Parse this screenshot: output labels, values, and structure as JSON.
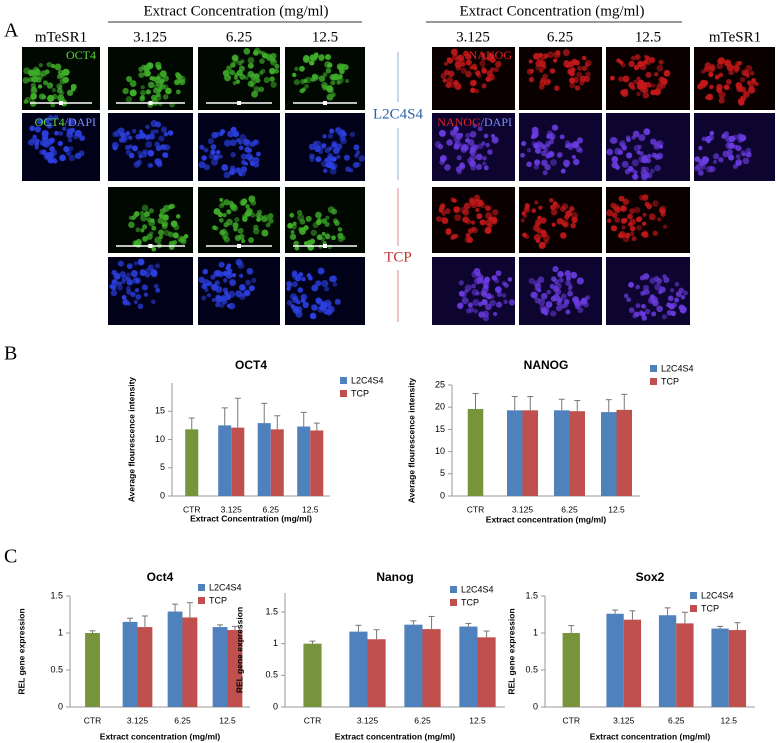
{
  "panel_a": {
    "label": "A",
    "left_header": "Extract  Concentration (mg/ml)",
    "right_header": "Extract  Concentration (mg/ml)",
    "left_columns": [
      "mTeSR1",
      "3.125",
      "6.25",
      "12.5"
    ],
    "right_columns": [
      "3.125",
      "6.25",
      "12.5",
      "mTeSR1"
    ],
    "stains": {
      "oct4": "OCT4",
      "nanog": "NANOG",
      "separator": "/",
      "dapi": "DAPI"
    },
    "groups": [
      "L2C4S4",
      "TCP"
    ]
  },
  "panel_b_label": "B",
  "panel_c_label": "C",
  "chart_data": [
    {
      "type": "bar",
      "title": "OCT4",
      "y_label": "Average flourescence intensity",
      "x_label": "Extract Concentration (mg/ml)",
      "categories": [
        "CTR",
        "3.125",
        "6.25",
        "12.5"
      ],
      "series": [
        {
          "color": "#77933c",
          "values": [
            11.8,
            null,
            null,
            null
          ],
          "errors": [
            2.0,
            null,
            null,
            null
          ]
        },
        {
          "name": "L2C4S4",
          "color": "#4f81bd",
          "values": [
            null,
            12.5,
            12.9,
            12.3
          ],
          "errors": [
            null,
            3.1,
            3.5,
            2.5
          ]
        },
        {
          "name": "TCP",
          "color": "#c0504d",
          "values": [
            null,
            12.1,
            11.8,
            11.6
          ],
          "errors": [
            null,
            5.2,
            2.4,
            1.3
          ]
        }
      ],
      "ylim": [
        0,
        20
      ],
      "yticks": [
        0,
        5,
        10,
        15
      ]
    },
    {
      "type": "bar",
      "title": "NANOG",
      "y_label": "Average flourescence intensity",
      "x_label": "Extract concentration (mg/ml)",
      "categories": [
        "CTR",
        "3.125",
        "6.25",
        "12.5"
      ],
      "series": [
        {
          "color": "#77933c",
          "values": [
            19.6,
            null,
            null,
            null
          ],
          "errors": [
            3.5,
            null,
            null,
            null
          ]
        },
        {
          "name": "L2C4S4",
          "color": "#4f81bd",
          "values": [
            null,
            19.3,
            19.3,
            18.9
          ],
          "errors": [
            null,
            3.1,
            2.5,
            2.8
          ]
        },
        {
          "name": "TCP",
          "color": "#c0504d",
          "values": [
            null,
            19.3,
            19.1,
            19.4
          ],
          "errors": [
            null,
            3.1,
            2.4,
            3.5
          ]
        }
      ],
      "ylim": [
        0,
        25
      ],
      "yticks": [
        0,
        5,
        10,
        15,
        20,
        25
      ]
    },
    {
      "type": "bar",
      "title": "Oct4",
      "y_label": "REL gene expression",
      "x_label": "Extract concentration (mg/ml)",
      "categories": [
        "CTR",
        "3.125",
        "6.25",
        "12.5"
      ],
      "series": [
        {
          "color": "#77933c",
          "values": [
            1.0,
            null,
            null,
            null
          ],
          "errors": [
            0.03,
            null,
            null,
            null
          ]
        },
        {
          "name": "L2C4S4",
          "color": "#4f81bd",
          "values": [
            null,
            1.15,
            1.29,
            1.08
          ],
          "errors": [
            null,
            0.05,
            0.1,
            0.03
          ]
        },
        {
          "name": "TCP",
          "color": "#c0504d",
          "values": [
            null,
            1.08,
            1.21,
            1.04
          ],
          "errors": [
            null,
            0.15,
            0.2,
            0.05
          ]
        }
      ],
      "ylim": [
        0,
        1.5
      ],
      "yticks": [
        0,
        0.5,
        1,
        1.5
      ]
    },
    {
      "type": "bar",
      "title": "Nanog",
      "y_label": "REL gene expression",
      "x_label": "Extract concentration (mg/ml)",
      "categories": [
        "CTR",
        "3.125",
        "6.25",
        "12.5"
      ],
      "series": [
        {
          "color": "#77933c",
          "values": [
            1.0,
            null,
            null,
            null
          ],
          "errors": [
            0.04,
            null,
            null,
            null
          ]
        },
        {
          "name": "L2C4S4",
          "color": "#4f81bd",
          "values": [
            null,
            1.19,
            1.3,
            1.27
          ],
          "errors": [
            null,
            0.1,
            0.06,
            0.05
          ]
        },
        {
          "name": "TCP",
          "color": "#c0504d",
          "values": [
            null,
            1.07,
            1.23,
            1.1
          ],
          "errors": [
            null,
            0.15,
            0.2,
            0.1
          ]
        }
      ],
      "ylim": [
        0,
        1.8
      ],
      "yticks": [
        0,
        0.5,
        1,
        1.5
      ]
    },
    {
      "type": "bar",
      "title": "Sox2",
      "y_label": "REL gene expression",
      "x_label": "Extract concentration (mg/ml)",
      "categories": [
        "CTR",
        "3.125",
        "6.25",
        "12.5"
      ],
      "series": [
        {
          "color": "#77933c",
          "values": [
            1.0,
            null,
            null,
            null
          ],
          "errors": [
            0.1,
            null,
            null,
            null
          ]
        },
        {
          "name": "L2C4S4",
          "color": "#4f81bd",
          "values": [
            null,
            1.26,
            1.24,
            1.06
          ],
          "errors": [
            null,
            0.05,
            0.1,
            0.03
          ]
        },
        {
          "name": "TCP",
          "color": "#c0504d",
          "values": [
            null,
            1.18,
            1.13,
            1.04
          ],
          "errors": [
            null,
            0.12,
            0.15,
            0.1
          ]
        }
      ],
      "ylim": [
        0,
        1.5
      ],
      "yticks": [
        0,
        0.5,
        1,
        1.5
      ]
    }
  ]
}
